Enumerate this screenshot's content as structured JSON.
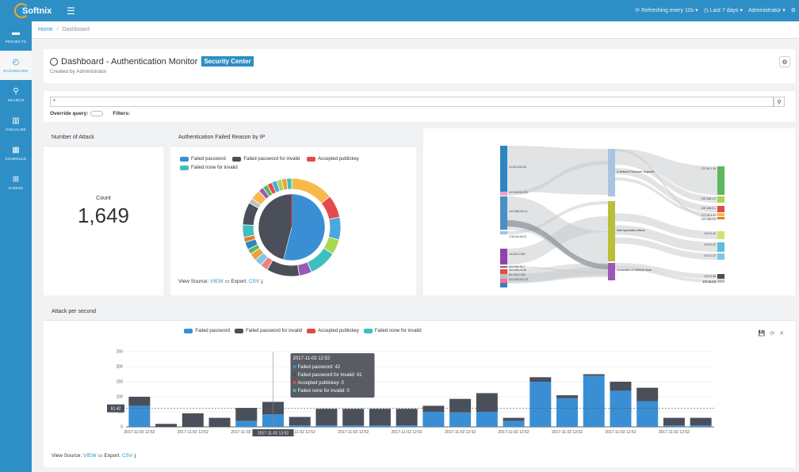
{
  "app": {
    "logo_text": "Softnix"
  },
  "topbar": {
    "refresh": "⟳ Refreshing every 10s ▾",
    "range": "◷ Last 7 days ▾",
    "user": "Administrator ▾",
    "settings_icon": "⚙"
  },
  "sidebar": {
    "items": [
      {
        "icon": "▬",
        "label": "PROJECTS"
      },
      {
        "icon": "◴",
        "label": "DASHBOARD"
      },
      {
        "icon": "⚲",
        "label": "SEARCH"
      },
      {
        "icon": "▥",
        "label": "VISUALIZE"
      },
      {
        "icon": "▦",
        "label": "SCHEDULE"
      },
      {
        "icon": "⊞",
        "label": "N-DESK"
      }
    ]
  },
  "breadcrumb": {
    "home": "Home",
    "sep": "/",
    "current": "Dashboard"
  },
  "dashboard": {
    "title": "Dashboard - Authentication Monitor",
    "badge": "Security Center",
    "created_by": "Created by Administrator",
    "gear": "⚙"
  },
  "filter": {
    "query_value": "*",
    "search_icon": "⚲",
    "override_label": "Override query:",
    "filters_label": "Filters:"
  },
  "attack_panel": {
    "title": "Number of Attack",
    "count_label": "Count",
    "count_value": "1,649"
  },
  "reason_panel": {
    "title": "Authentication Failed Reason by IP",
    "view_source": "View Source:",
    "view_link": "VIEW",
    "export": "Export:",
    "csv_link": "CSV"
  },
  "rps_panel": {
    "title": "Attack per second",
    "view_source": "View Source:",
    "view_link": "VIEW",
    "export": "Export:",
    "csv_link": "CSV",
    "toolbox": [
      "💾",
      "⟳",
      "✕"
    ]
  },
  "colors": {
    "primary": "#2e8fc6",
    "blue": "#3a8fd4",
    "dark": "#4a4f5a",
    "red": "#e54a4a",
    "teal": "#3fbfbf"
  },
  "chart_data": [
    {
      "type": "pie",
      "legend": [
        "Failed password",
        "Failed password for invalid",
        "Accepted publickey",
        "Failed none for invalid"
      ],
      "inner": [
        {
          "name": "Failed password",
          "value": 54
        },
        {
          "name": "Failed password for invalid",
          "value": 46
        }
      ],
      "outer_colors": [
        "#f6b94a",
        "#e54a4a",
        "#4aa8e0",
        "#a8d84e",
        "#3fbfbf",
        "#9b59b6",
        "#4a4f5a",
        "#f08080",
        "#7fc6e8",
        "#e8a33d",
        "#5cb85c",
        "#2e86c1",
        "#e67e22",
        "#3fbfbf",
        "#4a4f5a",
        "#c0c0c0",
        "#f6b94a",
        "#9b59b6",
        "#5cb85c",
        "#e54a4a",
        "#4aa8e0",
        "#a8d84e",
        "#e8a33d",
        "#3fbfbf"
      ],
      "outer_values": [
        17,
        9,
        9,
        6,
        11,
        5,
        13,
        3,
        3,
        3,
        2,
        3,
        2,
        5,
        9,
        2,
        4,
        2,
        2,
        2,
        2,
        2,
        2,
        2
      ]
    },
    {
      "type": "sankey",
      "left_labels": [
        "4.124.128.131",
        "110.169.64.201",
        "110.168.211.11",
        "178.164.45.21",
        "14.215.2.150",
        "110.169.78.2",
        "110.169.24.56",
        "61.143.2.139",
        "110.169.212.12"
      ],
      "mid_labels": [
        "A Network Firepower Segment",
        "Web Application Attack",
        "Generation of Network Scan"
      ],
      "right_labels": [
        "172.16.1.10",
        "192.168.1.2",
        "192.168.2.1",
        "172.16.1.11",
        "192.168.0.5",
        "10.0.0.22",
        "10.0.0.31",
        "10.0.1.22",
        "10.0.0.45",
        "172.16.2.8",
        "172.16.2.9"
      ]
    },
    {
      "type": "bar",
      "stacked": true,
      "legend": [
        "Failed password",
        "Failed password for invalid",
        "Accepted publickey",
        "Failed none for invalid"
      ],
      "x": [
        "2017-11-02 12:52",
        "",
        "2017-11-02 12:52",
        "",
        "2017-11-02 12:52",
        "",
        "2017-11-02 12:52",
        "",
        "2017-11-02 12:52",
        "",
        "2017-11-02 12:52",
        "",
        "2017-11-02 12:52",
        "",
        "2017-11-02 12:52",
        "",
        "2017-11-02 12:52",
        "",
        "2017-11-02 12:52",
        "",
        "2017-11-02 12:52",
        ""
      ],
      "series": [
        {
          "name": "Failed password",
          "values": [
            70,
            0,
            0,
            0,
            20,
            42,
            5,
            5,
            5,
            5,
            5,
            50,
            48,
            50,
            20,
            150,
            95,
            170,
            120,
            85,
            5,
            5
          ]
        },
        {
          "name": "Failed password for invalid",
          "values": [
            30,
            10,
            45,
            30,
            43,
            41,
            28,
            55,
            55,
            55,
            55,
            20,
            45,
            62,
            10,
            15,
            10,
            5,
            30,
            45,
            25,
            25
          ]
        }
      ],
      "y_ticks": [
        "0",
        "50",
        "100",
        "150",
        "200",
        "250"
      ],
      "ylim": [
        0,
        250
      ],
      "mark_line_value": "61.42",
      "axis_pointer_label": "2017-11-02 12:52",
      "tooltip": {
        "title": "2017-11-02 12:52",
        "rows": [
          "Failed password: 42",
          "Failed password for invalid: 41",
          "Accepted publickey: 0",
          "Failed none for invalid: 0"
        ]
      }
    }
  ]
}
